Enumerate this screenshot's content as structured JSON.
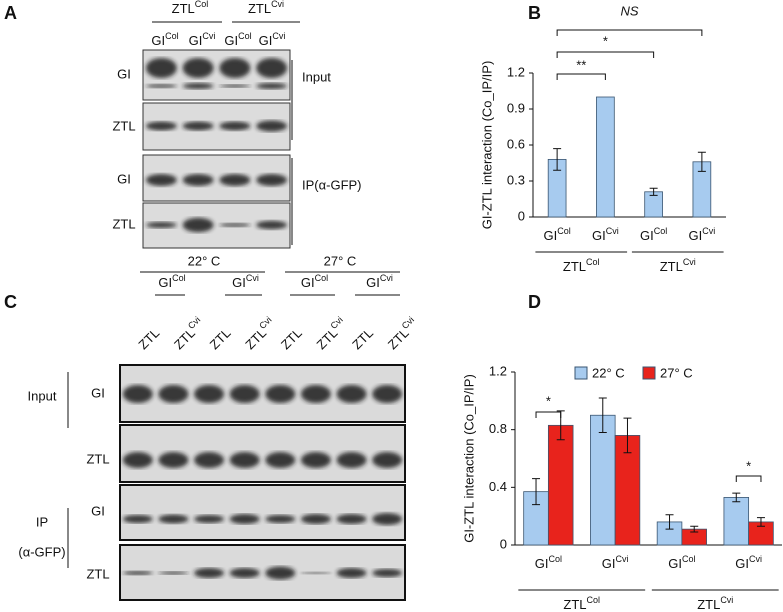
{
  "panels": [
    "A",
    "B",
    "C",
    "D"
  ],
  "blot_a": {
    "header": [
      {
        "text": "ZTL",
        "sup": "Col"
      },
      {
        "text": "ZTL",
        "sup": "Cvi"
      }
    ],
    "lanes": [
      {
        "text": "GI",
        "sup": "Col"
      },
      {
        "text": "GI",
        "sup": "Cvi"
      },
      {
        "text": "GI",
        "sup": "Col"
      },
      {
        "text": "GI",
        "sup": "Cvi"
      }
    ],
    "rows": [
      "GI",
      "ZTL",
      "GI",
      "ZTL"
    ],
    "sections": [
      "Input",
      "IP(α-GFP)"
    ]
  },
  "blot_c": {
    "temps": [
      "22° C",
      "27° C"
    ],
    "genotypes": [
      {
        "text": "GI",
        "sup": "Col"
      },
      {
        "text": "GI",
        "sup": "Cvi"
      },
      {
        "text": "GI",
        "sup": "Col"
      },
      {
        "text": "GI",
        "sup": "Cvi"
      }
    ],
    "lanes": [
      {
        "text": "ZTL",
        "sup": ""
      },
      {
        "text": "ZTL",
        "sup": "Cvi"
      },
      {
        "text": "ZTL",
        "sup": ""
      },
      {
        "text": "ZTL",
        "sup": "Cvi"
      },
      {
        "text": "ZTL",
        "sup": ""
      },
      {
        "text": "ZTL",
        "sup": "Cvi"
      },
      {
        "text": "ZTL",
        "sup": ""
      },
      {
        "text": "ZTL",
        "sup": "Cvi"
      }
    ],
    "rows": [
      "GI",
      "ZTL",
      "GI",
      "ZTL"
    ],
    "sections": [
      "Input",
      "IP",
      "(α-GFP)"
    ]
  },
  "chart_data": [
    {
      "type": "bar",
      "y_label": "GI-ZTL interaction (Co_IP/IP)",
      "categories": [
        {
          "text": "GI",
          "sup": "Col"
        },
        {
          "text": "GI",
          "sup": "Cvi"
        },
        {
          "text": "GI",
          "sup": "Col"
        },
        {
          "text": "GI",
          "sup": "Cvi"
        }
      ],
      "groups": [
        {
          "text": "ZTL",
          "sup": "Col"
        },
        {
          "text": "ZTL",
          "sup": "Cvi"
        }
      ],
      "series": [
        {
          "name": null,
          "color": "#a7cbef",
          "values": [
            0.48,
            1.0,
            0.21,
            0.46
          ],
          "errors": [
            0.09,
            0,
            0.03,
            0.08
          ]
        }
      ],
      "ylim": [
        0,
        1.2
      ],
      "yticks": [
        0,
        0.3,
        0.6,
        0.9,
        1.2
      ],
      "annotations": [
        "NS",
        "*",
        "**"
      ]
    },
    {
      "type": "bar",
      "y_label": "GI-ZTL interaction (Co_IP/IP)",
      "categories": [
        {
          "text": "GI",
          "sup": "Col"
        },
        {
          "text": "GI",
          "sup": "Cvi"
        },
        {
          "text": "GI",
          "sup": "Col"
        },
        {
          "text": "GI",
          "sup": "Cvi"
        }
      ],
      "groups": [
        {
          "text": "ZTL",
          "sup": "Col"
        },
        {
          "text": "ZTL",
          "sup": "Cvi"
        }
      ],
      "series": [
        {
          "name": "22° C",
          "color": "#a7cbef",
          "values": [
            0.37,
            0.9,
            0.16,
            0.33
          ],
          "errors": [
            0.09,
            0.12,
            0.05,
            0.03
          ]
        },
        {
          "name": "27° C",
          "color": "#e8231c",
          "values": [
            0.83,
            0.76,
            0.11,
            0.16
          ],
          "errors": [
            0.1,
            0.12,
            0.02,
            0.03
          ]
        }
      ],
      "ylim": [
        0,
        1.2
      ],
      "yticks": [
        0,
        0.4,
        0.8,
        1.2
      ],
      "annotations": [
        "*",
        "*"
      ]
    }
  ]
}
